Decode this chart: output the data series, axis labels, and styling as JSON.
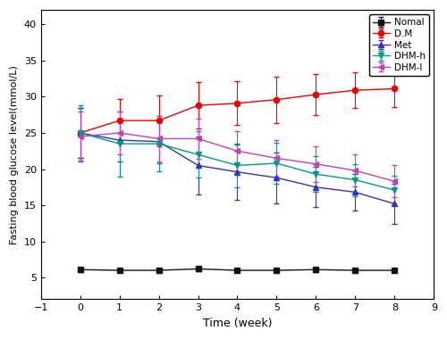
{
  "weeks": [
    0,
    1,
    2,
    3,
    4,
    5,
    6,
    7,
    8
  ],
  "normal": {
    "y": [
      6.1,
      6.0,
      6.0,
      6.2,
      6.0,
      6.0,
      6.1,
      6.0,
      6.0
    ],
    "yerr": [
      0.3,
      0.3,
      0.3,
      0.3,
      0.3,
      0.3,
      0.3,
      0.3,
      0.3
    ],
    "color": "#111111",
    "marker": "s",
    "label": "Nomal"
  },
  "dm": {
    "y": [
      25.0,
      26.7,
      26.7,
      28.8,
      29.1,
      29.6,
      30.3,
      30.9,
      31.1
    ],
    "yerr": [
      3.5,
      3.0,
      3.5,
      3.2,
      3.0,
      3.2,
      2.8,
      2.5,
      2.5
    ],
    "color": "#ee0000",
    "marker": "o",
    "label": "D.M"
  },
  "met": {
    "y": [
      25.0,
      24.0,
      23.8,
      20.5,
      19.6,
      18.8,
      17.5,
      16.8,
      15.2
    ],
    "yerr": [
      3.5,
      3.0,
      3.0,
      4.0,
      3.8,
      3.5,
      2.8,
      2.5,
      2.8
    ],
    "color": "#3333bb",
    "marker": "^",
    "label": "Met"
  },
  "dhmh": {
    "y": [
      25.0,
      23.5,
      23.5,
      22.0,
      20.5,
      20.8,
      19.3,
      18.5,
      17.1
    ],
    "yerr": [
      3.8,
      4.5,
      3.8,
      3.2,
      3.0,
      2.8,
      2.5,
      2.2,
      2.0
    ],
    "color": "#009988",
    "marker": "v",
    "label": "DHM-h"
  },
  "dhml": {
    "y": [
      24.5,
      25.0,
      24.2,
      24.2,
      22.5,
      21.5,
      20.7,
      19.8,
      18.3
    ],
    "yerr": [
      3.5,
      3.0,
      3.2,
      2.8,
      2.8,
      2.5,
      2.5,
      2.2,
      2.2
    ],
    "color": "#bb44bb",
    "marker": "<",
    "label": "DHM-l"
  },
  "xlim": [
    -1,
    9
  ],
  "ylim": [
    2,
    42
  ],
  "yticks": [
    5,
    10,
    15,
    20,
    25,
    30,
    35,
    40
  ],
  "xticks": [
    -1,
    0,
    1,
    2,
    3,
    4,
    5,
    6,
    7,
    8,
    9
  ],
  "xlabel": "Time (week)",
  "ylabel": "Fasting blood glucose level(mmol/L)",
  "legend_loc": "upper right"
}
